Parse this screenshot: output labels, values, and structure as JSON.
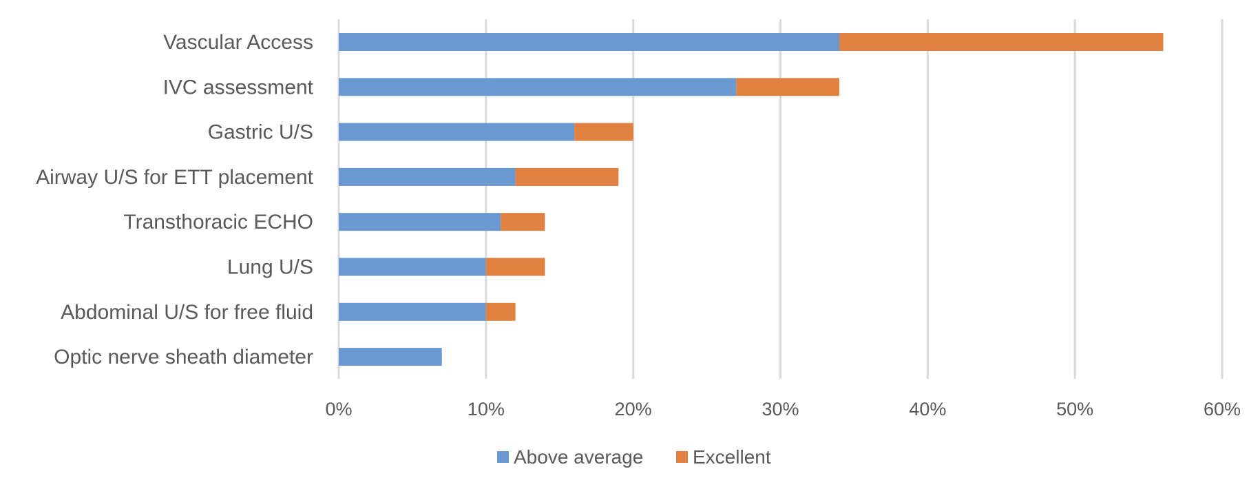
{
  "chart_data": {
    "type": "bar",
    "orientation": "horizontal",
    "stacked": true,
    "categories": [
      "Vascular Access",
      "IVC assessment",
      "Gastric U/S",
      "Airway U/S for ETT placement",
      "Transthoracic ECHO",
      "Lung U/S",
      "Abdominal U/S for free fluid",
      "Optic nerve sheath diameter"
    ],
    "series": [
      {
        "name": "Above average",
        "color": "#6a98d0",
        "values": [
          34,
          27,
          16,
          12,
          11,
          10,
          10,
          7
        ]
      },
      {
        "name": "Excellent",
        "color": "#e08142",
        "values": [
          22,
          7,
          4,
          7,
          3,
          4,
          2,
          0
        ]
      }
    ],
    "xlim": [
      0,
      60
    ],
    "xticks": [
      0,
      10,
      20,
      30,
      40,
      50,
      60
    ],
    "tick_labels": [
      "0%",
      "10%",
      "20%",
      "30%",
      "40%",
      "50%",
      "60%"
    ],
    "unit": "%",
    "grid": true,
    "legend": "bottom",
    "title": "",
    "xlabel": "",
    "ylabel": ""
  }
}
